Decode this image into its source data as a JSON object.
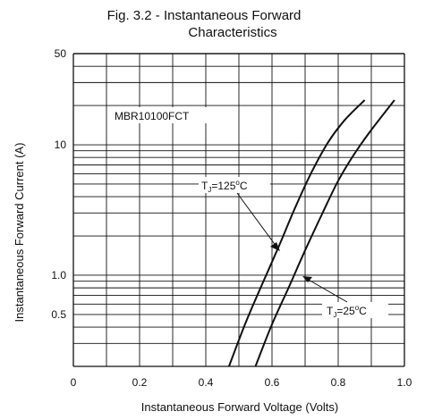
{
  "chart_data": {
    "type": "line",
    "title": [
      "Fig. 3.2 - Instantaneous Forward",
      "Characteristics"
    ],
    "xlabel": "Instantaneous Forward Voltage (Volts)",
    "ylabel": "Instantaneous Forward Current (A)",
    "xlim": [
      0,
      1.0
    ],
    "ylim": [
      0.2,
      50
    ],
    "y_scale": "log",
    "grid": true,
    "x_ticks": [
      0,
      0.2,
      0.4,
      0.6,
      0.8,
      1.0
    ],
    "x_tick_labels": [
      "0",
      "0.2",
      "0.4",
      "0.6",
      "0.8",
      "1.0"
    ],
    "y_ticks": [
      50,
      10,
      1.0,
      0.5
    ],
    "y_tick_labels": [
      "50",
      "10",
      "1.0",
      "0.5"
    ],
    "annotations": {
      "part": "MBR10100FCT",
      "t125_prefix": "T",
      "t125_sub": "J",
      "t125_value": "=125",
      "t125_sup": "o",
      "t125_unit": "C",
      "t25_prefix": "T",
      "t25_sub": "J",
      "t25_value": "=25",
      "t25_sup": "o",
      "t25_unit": "C"
    },
    "series": [
      {
        "name": "TJ=125°C",
        "x": [
          0.47,
          0.52,
          0.57,
          0.62,
          0.67,
          0.72,
          0.77,
          0.82,
          0.88
        ],
        "y": [
          0.2,
          0.43,
          0.85,
          1.65,
          3.3,
          6.2,
          10.5,
          15.5,
          22
        ]
      },
      {
        "name": "TJ=25°C",
        "x": [
          0.55,
          0.6,
          0.65,
          0.7,
          0.75,
          0.8,
          0.85,
          0.9,
          0.97
        ],
        "y": [
          0.2,
          0.42,
          0.8,
          1.55,
          2.9,
          5.3,
          8.6,
          13,
          22
        ]
      }
    ],
    "colors": {
      "line": "#111111",
      "grid": "#111111"
    }
  }
}
